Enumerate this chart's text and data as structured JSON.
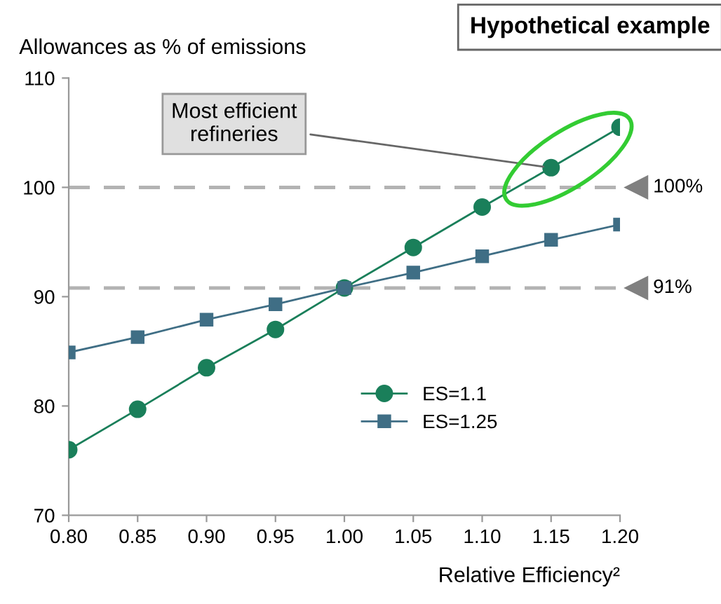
{
  "chart_data": {
    "type": "line",
    "title": "Hypothetical example",
    "ylabel": "Allowances as % of emissions",
    "xlabel": "Relative Efficiency²",
    "x": [
      0.8,
      0.85,
      0.9,
      0.95,
      1.0,
      1.05,
      1.1,
      1.15,
      1.2
    ],
    "series": [
      {
        "name": "ES=1.1",
        "color": "#1a7f5a",
        "marker": "circle",
        "values": [
          76.0,
          79.7,
          83.5,
          87.0,
          90.8,
          94.5,
          98.2,
          101.8,
          105.5
        ]
      },
      {
        "name": "ES=1.25",
        "color": "#3f6e85",
        "marker": "square",
        "values": [
          84.9,
          86.3,
          87.9,
          89.3,
          90.8,
          92.2,
          93.7,
          95.2,
          96.6
        ]
      }
    ],
    "xlim": [
      0.8,
      1.2
    ],
    "xticks": [
      {
        "value": 0.8,
        "label": "0.80"
      },
      {
        "value": 0.85,
        "label": "0.85"
      },
      {
        "value": 0.9,
        "label": "0.90"
      },
      {
        "value": 0.95,
        "label": "0.95"
      },
      {
        "value": 1.0,
        "label": "1.00"
      },
      {
        "value": 1.05,
        "label": "1.05"
      },
      {
        "value": 1.1,
        "label": "1.10"
      },
      {
        "value": 1.15,
        "label": "1.15"
      },
      {
        "value": 1.2,
        "label": "1.20"
      }
    ],
    "ylim": [
      70,
      110
    ],
    "yticks": [
      70,
      80,
      90,
      100,
      110
    ],
    "ref_lines": [
      {
        "axis": "y",
        "value": 100,
        "label": "100%",
        "color": "#b3b3b3",
        "line_style": "dashed"
      },
      {
        "axis": "y",
        "value": 90.8,
        "label": "91%",
        "color": "#b3b3b3",
        "line_style": "dashed"
      }
    ],
    "annotations": [
      {
        "text": "Most efficient refineries",
        "x": 1.15,
        "y": 101.8
      }
    ],
    "grid": false,
    "legend": "bottom right",
    "line_style": "solid"
  }
}
